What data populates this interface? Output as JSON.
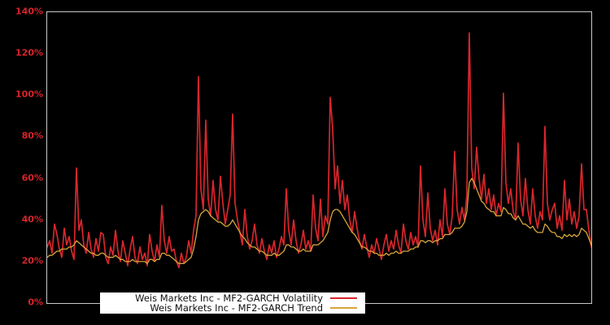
{
  "chart_data": {
    "type": "line",
    "title": "",
    "xlabel": "",
    "ylabel": "",
    "units": "%",
    "grid": false,
    "x_tick_labels": [],
    "y_ticks": [
      "0%",
      "20%",
      "40%",
      "60%",
      "80%",
      "100%",
      "120%",
      "140%"
    ],
    "ylim": [
      0,
      140
    ],
    "background_color": "#000000",
    "plot_border_color": "#c9c9c9",
    "tick_label_color": "#d8232a",
    "legend": {
      "position": "lower-left",
      "background": "#ffffff",
      "text_color": "#111111"
    },
    "series": [
      {
        "name": "Weis Markets Inc - MF2-GARCH Volatility",
        "color": "#d8262c",
        "line_width": 1.7,
        "values": [
          27,
          30,
          24,
          38,
          33,
          26,
          22,
          36,
          28,
          32,
          25,
          21,
          65,
          35,
          40,
          28,
          24,
          34,
          26,
          22,
          31,
          25,
          34,
          33,
          22,
          19,
          27,
          23,
          35,
          25,
          20,
          30,
          24,
          18,
          26,
          32,
          22,
          19,
          27,
          21,
          24,
          18,
          33,
          25,
          20,
          28,
          22,
          47,
          30,
          24,
          32,
          25,
          26,
          20,
          17,
          24,
          19,
          22,
          30,
          24,
          35,
          42,
          109,
          55,
          45,
          88,
          50,
          42,
          59,
          45,
          40,
          61,
          48,
          38,
          45,
          52,
          91,
          48,
          40,
          34,
          28,
          45,
          32,
          26,
          30,
          38,
          28,
          24,
          31,
          25,
          21,
          28,
          24,
          30,
          22,
          26,
          32,
          28,
          55,
          35,
          28,
          40,
          30,
          24,
          28,
          35,
          26,
          30,
          25,
          52,
          36,
          30,
          50,
          32,
          42,
          38,
          99,
          84,
          55,
          66,
          48,
          59,
          45,
          52,
          40,
          34,
          44,
          36,
          30,
          26,
          33,
          27,
          22,
          28,
          24,
          31,
          26,
          21,
          28,
          33,
          25,
          30,
          26,
          35,
          28,
          24,
          38,
          30,
          26,
          34,
          28,
          32,
          27,
          66,
          40,
          32,
          53,
          36,
          30,
          35,
          28,
          40,
          32,
          55,
          38,
          33,
          42,
          73,
          45,
          38,
          46,
          40,
          52,
          130,
          65,
          55,
          75,
          60,
          50,
          62,
          48,
          55,
          45,
          52,
          42,
          48,
          44,
          101,
          58,
          48,
          55,
          44,
          40,
          77,
          50,
          42,
          60,
          45,
          38,
          55,
          42,
          36,
          44,
          40,
          85,
          48,
          40,
          45,
          48,
          36,
          42,
          35,
          59,
          40,
          50,
          38,
          44,
          36,
          42,
          67,
          45,
          45,
          35,
          27
        ]
      },
      {
        "name": "Weis Markets Inc - MF2-GARCH Trend",
        "color": "#d6a63b",
        "line_width": 1.3,
        "values": [
          22,
          23,
          23,
          24,
          25,
          25,
          26,
          26,
          26,
          27,
          27,
          28,
          30,
          29,
          28,
          27,
          26,
          25,
          24,
          24,
          23,
          23,
          24,
          24,
          23,
          22,
          22,
          22,
          23,
          22,
          21,
          21,
          20,
          20,
          20,
          21,
          20,
          20,
          20,
          20,
          20,
          19,
          21,
          21,
          20,
          21,
          21,
          24,
          24,
          23,
          23,
          22,
          21,
          20,
          19,
          19,
          19,
          20,
          21,
          22,
          26,
          32,
          40,
          43,
          44,
          45,
          44,
          42,
          41,
          40,
          39,
          39,
          38,
          37,
          37,
          38,
          40,
          38,
          36,
          34,
          32,
          31,
          29,
          28,
          27,
          27,
          26,
          25,
          25,
          24,
          23,
          23,
          23,
          24,
          23,
          23,
          24,
          25,
          28,
          28,
          27,
          27,
          26,
          25,
          25,
          26,
          25,
          25,
          25,
          28,
          28,
          28,
          29,
          30,
          32,
          34,
          40,
          44,
          45,
          45,
          44,
          42,
          40,
          38,
          36,
          34,
          33,
          31,
          29,
          27,
          27,
          26,
          25,
          25,
          24,
          24,
          23,
          23,
          23,
          24,
          23,
          24,
          24,
          25,
          24,
          24,
          25,
          25,
          25,
          26,
          26,
          27,
          27,
          30,
          30,
          29,
          30,
          30,
          29,
          30,
          30,
          31,
          31,
          33,
          33,
          33,
          34,
          36,
          36,
          36,
          37,
          39,
          44,
          58,
          60,
          58,
          55,
          52,
          49,
          48,
          46,
          45,
          44,
          44,
          42,
          42,
          42,
          46,
          45,
          43,
          43,
          41,
          40,
          42,
          40,
          38,
          38,
          37,
          36,
          37,
          35,
          34,
          34,
          34,
          38,
          37,
          35,
          34,
          34,
          32,
          32,
          31,
          33,
          32,
          33,
          32,
          33,
          32,
          33,
          36,
          35,
          34,
          31,
          28
        ]
      }
    ]
  }
}
